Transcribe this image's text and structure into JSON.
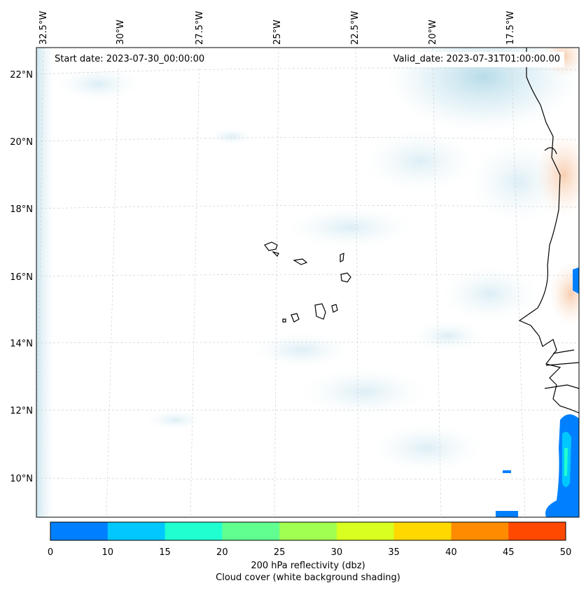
{
  "map": {
    "start_label": "Start date: 2023-07-30_00:00:00",
    "valid_label": "Valid_date: 2023-07-31T01:00:00.00",
    "lon_labels": [
      "32.5°W",
      "30°W",
      "27.5°W",
      "25°W",
      "22.5°W",
      "20°W",
      "17.5°W"
    ],
    "lat_labels": [
      "22°N",
      "20°N",
      "18°N",
      "16°N",
      "14°N",
      "12°N",
      "10°N"
    ]
  },
  "colorbar": {
    "ticks": [
      "0",
      "10",
      "15",
      "20",
      "25",
      "30",
      "35",
      "40",
      "45",
      "50"
    ],
    "colors": [
      "#0080ff",
      "#00c8ff",
      "#20ffd0",
      "#60ff90",
      "#a0ff50",
      "#d8ff20",
      "#ffd800",
      "#ff8c00",
      "#ff4800"
    ],
    "label_line1": "200 hPa reflectivity (dbz)",
    "label_line2": "Cloud cover (white background shading)"
  }
}
